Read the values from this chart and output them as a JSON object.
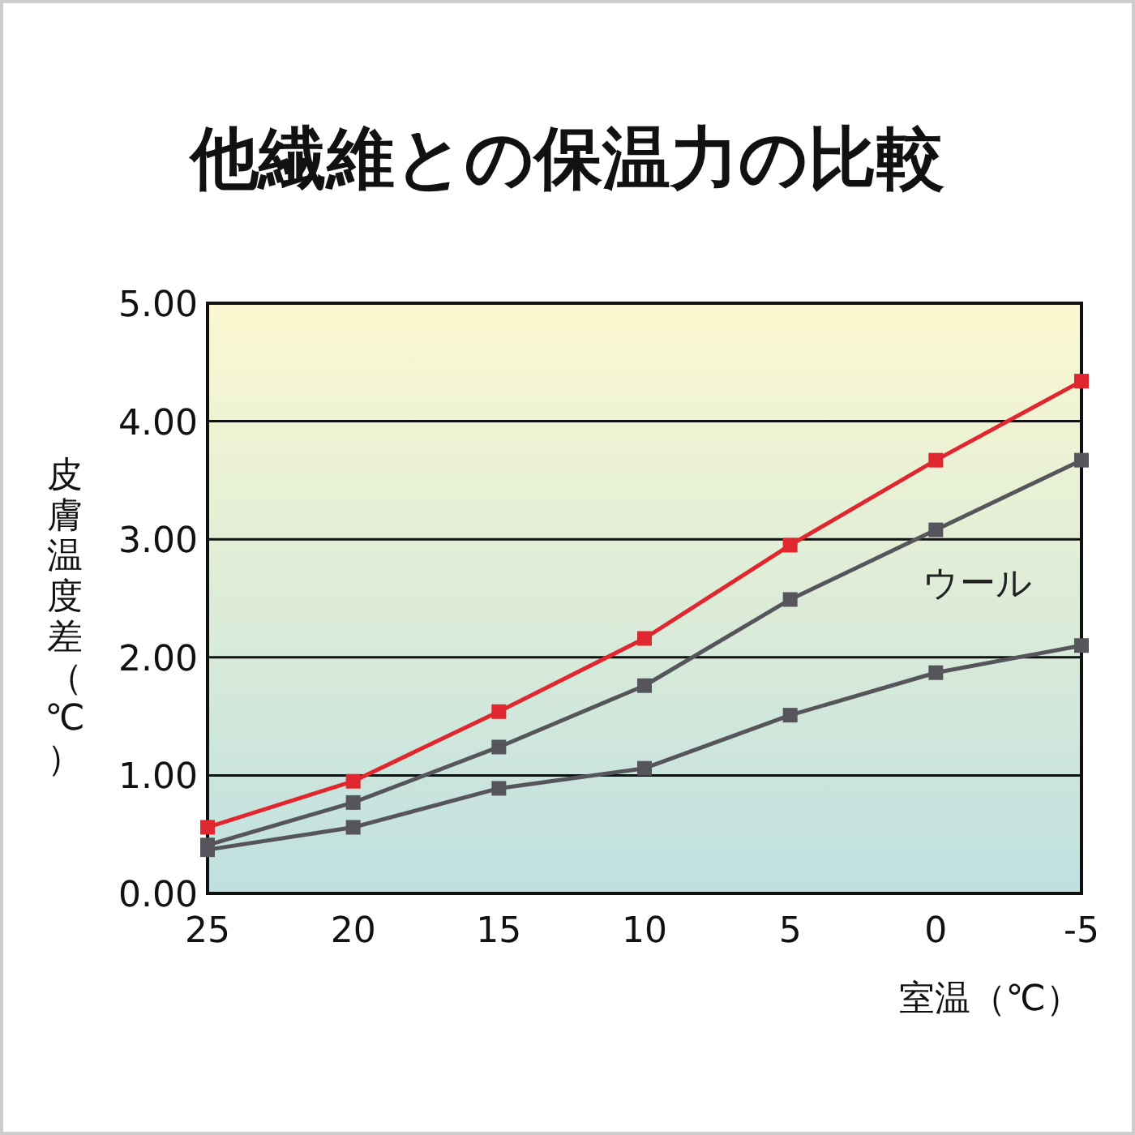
{
  "chart_data": {
    "type": "line",
    "title": "他繊維との保温力の比較",
    "xlabel": "室温（℃）",
    "ylabel": "皮膚温度差（℃）",
    "x": [
      25,
      20,
      15,
      10,
      5,
      0,
      -5
    ],
    "series": [
      {
        "color": "#e0262e",
        "values": [
          0.56,
          0.95,
          1.54,
          2.16,
          2.95,
          3.67,
          4.34
        ]
      },
      {
        "name": "ウール",
        "color": "#55555b",
        "values": [
          0.41,
          0.77,
          1.24,
          1.76,
          2.49,
          3.08,
          3.67
        ]
      },
      {
        "color": "#55555b",
        "values": [
          0.37,
          0.56,
          0.89,
          1.06,
          1.51,
          1.87,
          2.1
        ]
      }
    ],
    "xlim": [
      25,
      -5
    ],
    "xticks": [
      25,
      20,
      15,
      10,
      5,
      0,
      -5
    ],
    "ylim": [
      0,
      5
    ],
    "yticks": [
      {
        "value": 0,
        "label": "0.00"
      },
      {
        "value": 1,
        "label": "1.00"
      },
      {
        "value": 2,
        "label": "2.00"
      },
      {
        "value": 3,
        "label": "3.00"
      },
      {
        "value": 4,
        "label": "4.00"
      },
      {
        "value": 5,
        "label": "5.00"
      }
    ],
    "grid": "y",
    "marker": "square",
    "line_style": "solid"
  }
}
